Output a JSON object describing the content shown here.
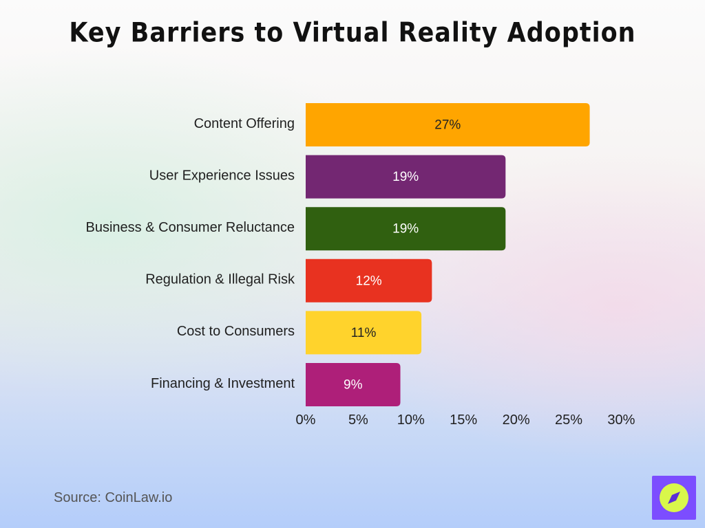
{
  "title": "Key Barriers to Virtual Reality Adoption",
  "source": "Source: CoinLaw.io",
  "logo": {
    "icon": "compass-icon",
    "bg": "#7c4dff",
    "circle": "#d9f74a",
    "needle": "#5b2fd6"
  },
  "chart_data": {
    "type": "bar",
    "orientation": "horizontal",
    "title": "Key Barriers to Virtual Reality Adoption",
    "categories": [
      "Content Offering",
      "User Experience Issues",
      "Business & Consumer Reluctance",
      "Regulation & Illegal Risk",
      "Cost to Consumers",
      "Financing & Investment"
    ],
    "values": [
      27,
      19,
      19,
      12,
      11,
      9
    ],
    "value_labels": [
      "27%",
      "19%",
      "19%",
      "12%",
      "11%",
      "9%"
    ],
    "colors": [
      "#ffa500",
      "#732772",
      "#306010",
      "#e83220",
      "#ffd32c",
      "#ae1f79"
    ],
    "label_colors": [
      "#222222",
      "#ffffff",
      "#ffffff",
      "#ffffff",
      "#222222",
      "#ffffff"
    ],
    "xticks": [
      0,
      5,
      10,
      15,
      20,
      25,
      30
    ],
    "xtick_labels": [
      "0%",
      "5%",
      "10%",
      "15%",
      "20%",
      "25%",
      "30%"
    ],
    "xlim": [
      0,
      30
    ],
    "xlabel": "",
    "ylabel": "",
    "grid": false,
    "legend": false
  }
}
